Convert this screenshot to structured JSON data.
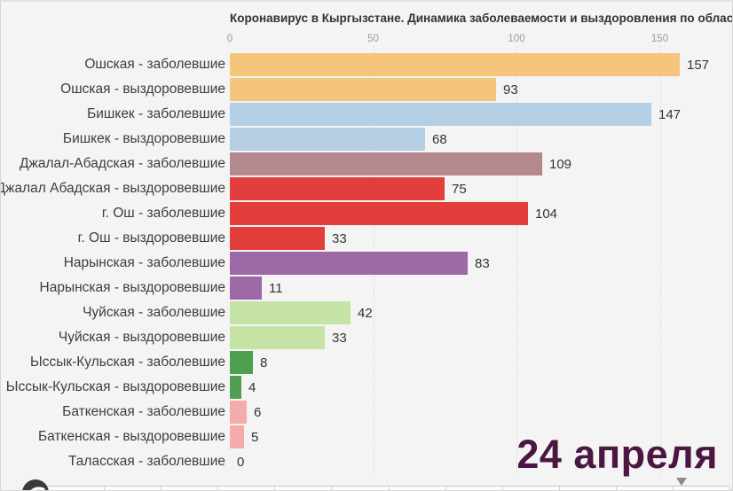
{
  "chart": {
    "title": "Коронавирус в Кыргызстане. Динамика заболеваемости и выздоровления по областям",
    "date_label": "24 апреля"
  },
  "chart_data": {
    "type": "bar",
    "orientation": "horizontal",
    "title": "Коронавирус в Кыргызстане. Динамика заболеваемости и выздоровления по областям",
    "annotation": "24 апреля",
    "xlabel": "",
    "ylabel": "",
    "xlim": [
      0,
      175
    ],
    "x_ticks": [
      0,
      50,
      100,
      150
    ],
    "grid": true,
    "legend": "none",
    "categories": [
      "Ошская - заболевшие",
      "Ошская - выздоровевшие",
      "Бишкек - заболевшие",
      "Бишкек - выздоровевшие",
      "Джалал-Абадская - заболевшие",
      "Джалал Абадская - выздоровевшие",
      "г. Ош - заболевшие",
      "г. Ош - выздоровевшие",
      "Нарынская - заболевшие",
      "Нарынская - выздоровевшие",
      "Чуйская - заболевшие",
      "Чуйская - выздоровевшие",
      "Ыссык-Кульская - заболевшие",
      "Ыссык-Кульская - выздоровевшие",
      "Баткенская - заболевшие",
      "Баткенская - выздоровевшие",
      "Таласская - заболевшие"
    ],
    "values": [
      157,
      93,
      147,
      68,
      109,
      75,
      104,
      33,
      83,
      11,
      42,
      33,
      8,
      4,
      6,
      5,
      0
    ],
    "bar_colors": [
      "#f6c57c",
      "#f6c57c",
      "#b4cfe3",
      "#b4cfe3",
      "#b3898d",
      "#e23e3b",
      "#e23e3b",
      "#e23e3b",
      "#9c68a6",
      "#9c68a6",
      "#c6e3a6",
      "#c6e3a6",
      "#4f9f50",
      "#4f9f50",
      "#f3acab",
      "#f3acab",
      "#f3acab"
    ]
  },
  "colors": {
    "background": "#f4f4f4",
    "title_text": "#333333",
    "tick_text": "#9a9a9a",
    "label_text": "#3d3d3d",
    "value_text": "#333333",
    "date_text": "#4b1742"
  },
  "timeline": {
    "segments": 12,
    "handle_position_fraction": 0.92
  },
  "icons": {
    "watermark": "flourish-logo",
    "slider_handle": "triangle-down-icon"
  }
}
